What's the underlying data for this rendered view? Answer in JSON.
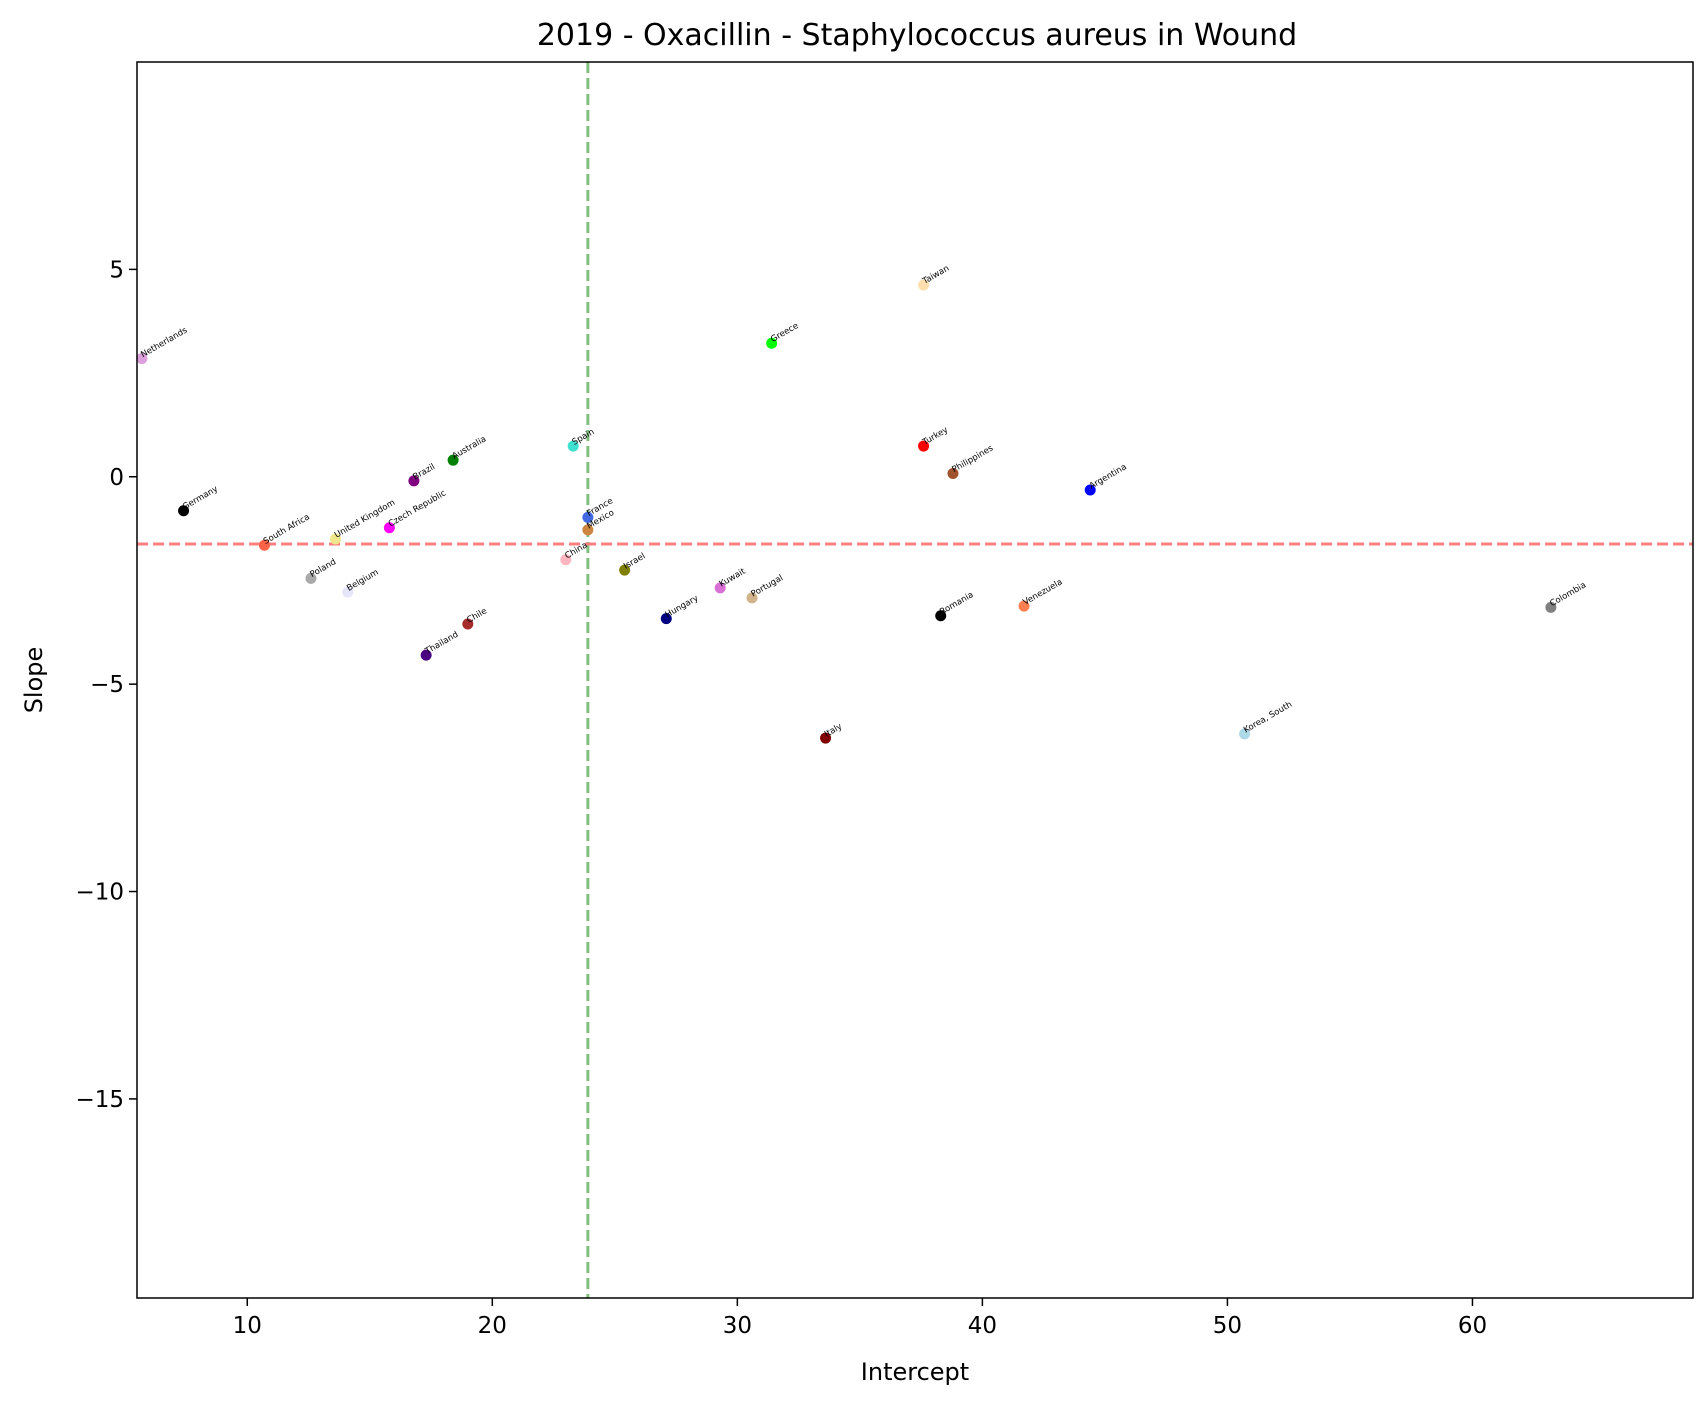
{
  "chart_data": {
    "type": "scatter",
    "title": "2019 - Oxacillin - Staphylococcus aureus in Wound",
    "xlabel": "Intercept",
    "ylabel": "Slope",
    "xlim": [
      5.5,
      69.0
    ],
    "ylim": [
      -19.8,
      10.0
    ],
    "xticks": [
      10,
      20,
      30,
      40,
      50,
      60
    ],
    "yticks": [
      5,
      0,
      -5,
      -10,
      -15
    ],
    "grid": false,
    "reference_lines": {
      "vertical": {
        "x": 23.9,
        "color": "#7fbf7f",
        "style": "dashed"
      },
      "horizontal": {
        "y": -1.62,
        "color": "#ff7f7f",
        "style": "dashed"
      }
    },
    "points": [
      {
        "label": "Netherlands",
        "x": 5.7,
        "y": 2.85,
        "color": "#dda0dd"
      },
      {
        "label": "Germany",
        "x": 7.4,
        "y": -0.82,
        "color": "#000000"
      },
      {
        "label": "South Africa",
        "x": 10.7,
        "y": -1.65,
        "color": "#ff6347"
      },
      {
        "label": "Poland",
        "x": 12.6,
        "y": -2.45,
        "color": "#a9a9a9"
      },
      {
        "label": "United Kingdom",
        "x": 13.6,
        "y": -1.5,
        "color": "#f0e68c"
      },
      {
        "label": "Belgium",
        "x": 14.1,
        "y": -2.78,
        "color": "#e6e6fa"
      },
      {
        "label": "Czech Republic",
        "x": 15.8,
        "y": -1.23,
        "color": "#ff00ff"
      },
      {
        "label": "Brazil",
        "x": 16.8,
        "y": -0.1,
        "color": "#800080"
      },
      {
        "label": "Thailand",
        "x": 17.3,
        "y": -4.3,
        "color": "#4b0082"
      },
      {
        "label": "Australia",
        "x": 18.4,
        "y": 0.4,
        "color": "#008000"
      },
      {
        "label": "Chile",
        "x": 19.0,
        "y": -3.55,
        "color": "#a52a2a"
      },
      {
        "label": "China",
        "x": 23.0,
        "y": -2.0,
        "color": "#ffb6c1"
      },
      {
        "label": "Spain",
        "x": 23.3,
        "y": 0.74,
        "color": "#40e0d0"
      },
      {
        "label": "France",
        "x": 23.9,
        "y": -0.98,
        "color": "#4169e1"
      },
      {
        "label": "Mexico",
        "x": 23.9,
        "y": -1.28,
        "color": "#cd853f"
      },
      {
        "label": "Israel",
        "x": 25.4,
        "y": -2.25,
        "color": "#808000"
      },
      {
        "label": "Hungary",
        "x": 27.1,
        "y": -3.42,
        "color": "#000080"
      },
      {
        "label": "Kuwait",
        "x": 29.3,
        "y": -2.68,
        "color": "#da70d6"
      },
      {
        "label": "Portugal",
        "x": 30.6,
        "y": -2.92,
        "color": "#d2b48c"
      },
      {
        "label": "Greece",
        "x": 31.4,
        "y": 3.22,
        "color": "#00ff00"
      },
      {
        "label": "Italy",
        "x": 33.6,
        "y": -6.3,
        "color": "#800000"
      },
      {
        "label": "Taiwan",
        "x": 37.6,
        "y": 4.62,
        "color": "#ffdead"
      },
      {
        "label": "Turkey",
        "x": 37.6,
        "y": 0.74,
        "color": "#ff0000"
      },
      {
        "label": "Romania",
        "x": 38.3,
        "y": -3.35,
        "color": "#000000"
      },
      {
        "label": "Philippines",
        "x": 38.8,
        "y": 0.08,
        "color": "#a0522d"
      },
      {
        "label": "Venezuela",
        "x": 41.7,
        "y": -3.12,
        "color": "#ff7f50"
      },
      {
        "label": "Argentina",
        "x": 44.4,
        "y": -0.32,
        "color": "#0000ff"
      },
      {
        "label": "Korea, South",
        "x": 50.7,
        "y": -6.2,
        "color": "#add8e6"
      },
      {
        "label": "Colombia",
        "x": 63.2,
        "y": -3.15,
        "color": "#808080"
      }
    ]
  }
}
